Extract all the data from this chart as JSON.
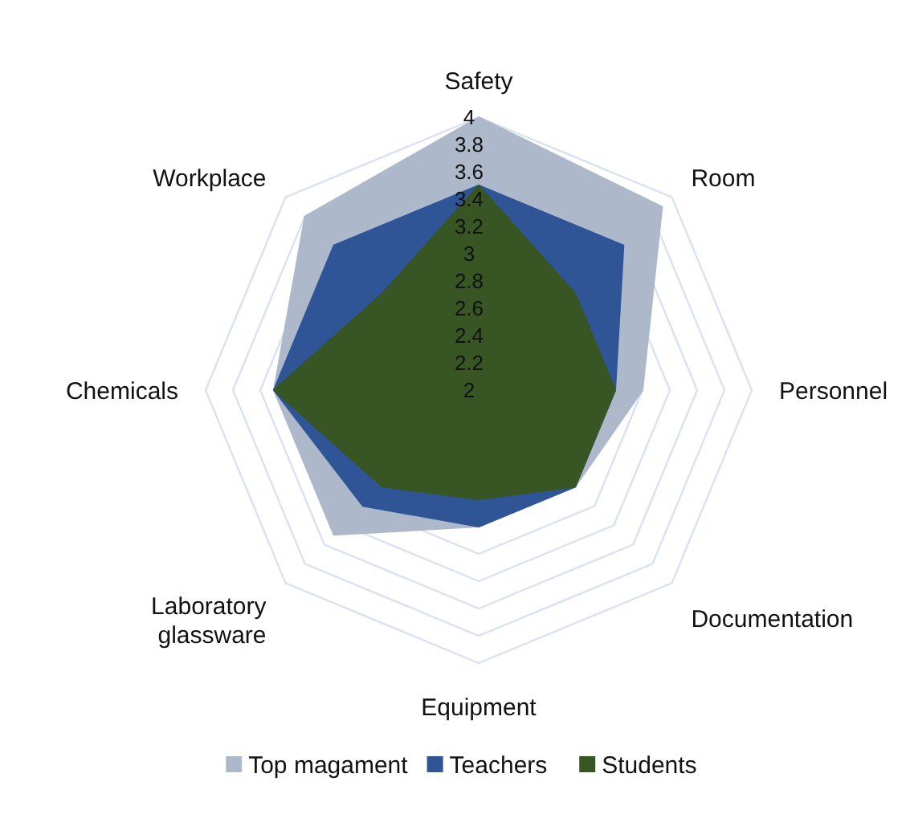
{
  "chart_data": {
    "type": "radar",
    "categories": [
      "Safety",
      "Room",
      "Personnel",
      "Documentation",
      "Equipment",
      "Laboratory glassware",
      "Chemicals",
      "Workplace"
    ],
    "series": [
      {
        "name": "Top magament",
        "color": "#adb9ca",
        "values": [
          4,
          3.9,
          3.2,
          3,
          3,
          3.5,
          3.5,
          3.8
        ]
      },
      {
        "name": "Teachers",
        "color": "#2f5597",
        "values": [
          3.5,
          3.5,
          3,
          3,
          3,
          3.2,
          3.5,
          3.5
        ]
      },
      {
        "name": "Students",
        "color": "#375623",
        "values": [
          3.5,
          3,
          3,
          3,
          2.8,
          3,
          3.5,
          3
        ]
      }
    ],
    "ylim": [
      2,
      4
    ],
    "yticks": [
      2,
      2.2,
      2.4,
      2.6,
      2.8,
      3,
      3.2,
      3.4,
      3.6,
      3.8,
      4
    ],
    "legend": "bottom"
  }
}
